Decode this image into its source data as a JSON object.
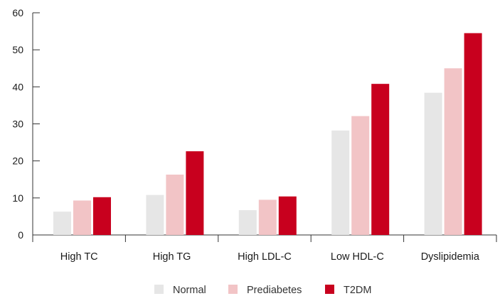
{
  "chart_data": {
    "type": "bar",
    "categories": [
      "High TC",
      "High TG",
      "High LDL-C",
      "Low HDL-C",
      "Dyslipidemia"
    ],
    "series": [
      {
        "name": "Normal",
        "color": "#e6e6e6",
        "values": [
          6.3,
          10.8,
          6.7,
          28.2,
          38.4
        ]
      },
      {
        "name": "Prediabetes",
        "color": "#f2c4c6",
        "values": [
          9.3,
          16.3,
          9.5,
          32.1,
          45.0
        ]
      },
      {
        "name": "T2DM",
        "color": "#c8001e",
        "values": [
          10.2,
          22.6,
          10.4,
          40.8,
          54.5
        ]
      }
    ],
    "ylim": [
      0,
      60
    ],
    "yticks": [
      "0",
      "10",
      "20",
      "30",
      "40",
      "50",
      "60"
    ],
    "grid": false,
    "legend": "bottom",
    "axis_color": "#333333"
  }
}
